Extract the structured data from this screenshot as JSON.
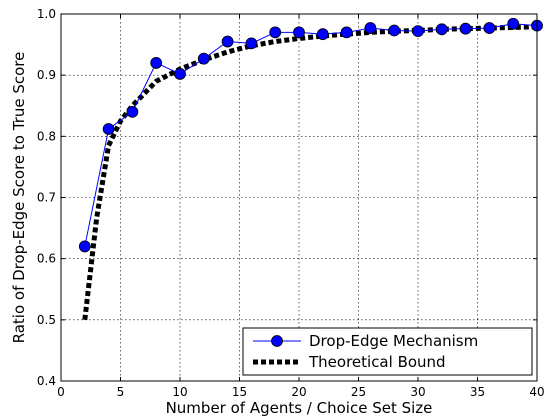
{
  "chart_data": {
    "type": "line",
    "title": "",
    "xlabel": "Number of Agents / Choice Set Size",
    "ylabel": "Ratio of Drop-Edge Score to True Score",
    "xlim": [
      0,
      40
    ],
    "ylim": [
      0.4,
      1.0
    ],
    "xticks": [
      0,
      5,
      10,
      15,
      20,
      25,
      30,
      35,
      40
    ],
    "yticks": [
      0.4,
      0.5,
      0.6,
      0.7,
      0.8,
      0.9,
      1.0
    ],
    "xtick_labels": [
      "0",
      "5",
      "10",
      "15",
      "20",
      "25",
      "30",
      "35",
      "40"
    ],
    "ytick_labels": [
      "0.4",
      "0.5",
      "0.6",
      "0.7",
      "0.8",
      "0.9",
      "1.0"
    ],
    "grid": true,
    "legend_position": "bottom-right",
    "series": [
      {
        "name": "Drop-Edge Mechanism",
        "style": "line-with-circle-markers",
        "color": "#0000ff",
        "marker_color": "#0000ff",
        "x": [
          2,
          4,
          6,
          8,
          10,
          12,
          14,
          16,
          18,
          20,
          22,
          24,
          26,
          28,
          30,
          32,
          34,
          36,
          38,
          40
        ],
        "y": [
          0.62,
          0.812,
          0.84,
          0.92,
          0.902,
          0.927,
          0.955,
          0.952,
          0.97,
          0.97,
          0.967,
          0.97,
          0.977,
          0.973,
          0.972,
          0.975,
          0.976,
          0.977,
          0.984,
          0.981
        ]
      },
      {
        "name": "Theoretical Bound",
        "style": "thick-dashed-line",
        "color": "#000000",
        "x": [
          2,
          3,
          4,
          5,
          6,
          7,
          8,
          10,
          12,
          14,
          16,
          18,
          20,
          22,
          24,
          26,
          28,
          30,
          32,
          34,
          36,
          38,
          40
        ],
        "y": [
          0.5,
          0.667,
          0.785,
          0.825,
          0.85,
          0.87,
          0.89,
          0.91,
          0.925,
          0.938,
          0.948,
          0.955,
          0.96,
          0.964,
          0.967,
          0.97,
          0.972,
          0.973,
          0.975,
          0.976,
          0.977,
          0.978,
          0.979
        ]
      }
    ]
  }
}
